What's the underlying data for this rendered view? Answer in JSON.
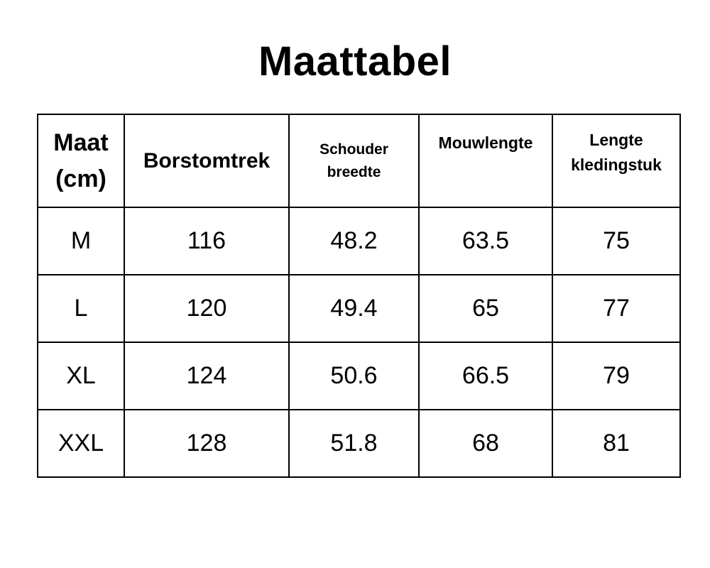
{
  "page_title": "Maattabel",
  "chart_data": {
    "type": "table",
    "title": "Maattabel",
    "unit": "cm",
    "columns": [
      "Maat\n(cm)",
      "Borstomtrek",
      "Schouder\nbreedte",
      "Mouwlengte",
      "Lengte\nkledingstuk"
    ],
    "rows": [
      [
        "M",
        "116",
        "48.2",
        "63.5",
        "75"
      ],
      [
        "L",
        "120",
        "49.4",
        "65",
        "77"
      ],
      [
        "XL",
        "124",
        "50.6",
        "66.5",
        "79"
      ],
      [
        "XXL",
        "128",
        "51.8",
        "68",
        "81"
      ]
    ]
  },
  "colors": {
    "background": "#ffffff",
    "text": "#000000",
    "border": "#000000"
  }
}
